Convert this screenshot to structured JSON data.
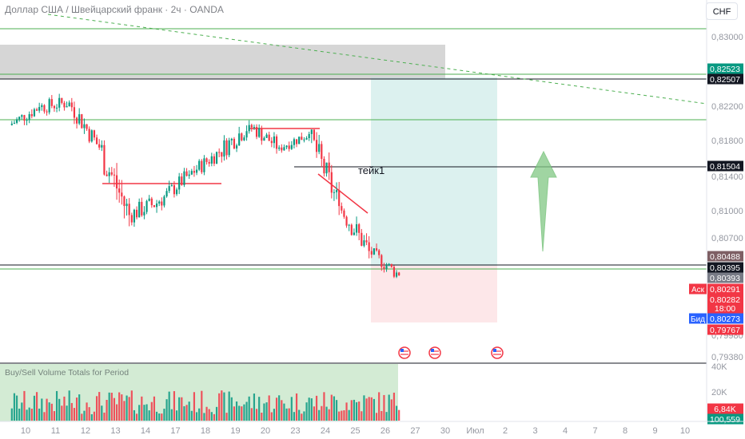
{
  "title": "Доллар США / Швейцарский франк · 2ч · OANDA",
  "currency_button": "CHF",
  "colors": {
    "up": "#089981",
    "down": "#f23645",
    "green_line": "#4caf50",
    "target_zone": "#b2dfdb",
    "stop_zone": "#fde1e3",
    "gray_zone": "#d6d6d6",
    "arrow": "#81c784"
  },
  "volume_panel_title": "Buy/Sell Volume Totals for Period",
  "annotation": "тейк1",
  "price_axis": {
    "ticks": [
      "0,83000",
      "0,82200",
      "0,81800",
      "0,81400",
      "0,81000",
      "0,80700",
      "0,79980",
      "0,79380"
    ],
    "tags": [
      {
        "label": "0,82523",
        "color": "#089981"
      },
      {
        "label": "0,82507",
        "color": "#131722"
      },
      {
        "label": "0,81504",
        "color": "#131722"
      },
      {
        "label": "0,80488",
        "color": "#7e5f64"
      },
      {
        "label": "0,80395",
        "color": "#131722"
      },
      {
        "label": "0,80393",
        "color": "#787b86"
      },
      {
        "label": "0,80291",
        "color": "#f23645",
        "side": "Аск"
      },
      {
        "label": "0,80282",
        "color": "#f23645"
      },
      {
        "label": "18:00",
        "color": "#f23645"
      },
      {
        "label": "0,80273",
        "color": "#2962ff",
        "side": "Бид"
      },
      {
        "label": "0,79767",
        "color": "#f23645"
      }
    ]
  },
  "volume_axis": {
    "ticks": [
      "40K",
      "20K"
    ],
    "tags": [
      {
        "label": "6,84K",
        "color": "#f23645"
      },
      {
        "label": "100,559",
        "color": "#089981"
      }
    ]
  },
  "time_axis": [
    "10",
    "11",
    "12",
    "13",
    "14",
    "17",
    "18",
    "19",
    "20",
    "23",
    "24",
    "25",
    "26",
    "27",
    "30",
    "Июл",
    "2",
    "3",
    "4",
    "7",
    "8",
    "9",
    "10"
  ],
  "chart_data": {
    "type": "candlestick",
    "timeframe": "2h",
    "ylim": [
      0.7938,
      0.8312
    ],
    "x_labels": [
      "10",
      "11",
      "12",
      "13",
      "14",
      "17",
      "18",
      "19",
      "20",
      "23",
      "24",
      "25",
      "26",
      "27",
      "30",
      "Июл",
      "2",
      "3",
      "4",
      "7",
      "8",
      "9",
      "10"
    ],
    "daily_ohlc": [
      {
        "day": "10",
        "open": 0.8195,
        "high": 0.823,
        "low": 0.8185,
        "close": 0.8215
      },
      {
        "day": "11",
        "open": 0.8215,
        "high": 0.824,
        "low": 0.8195,
        "close": 0.822
      },
      {
        "day": "12",
        "open": 0.822,
        "high": 0.8225,
        "low": 0.816,
        "close": 0.817
      },
      {
        "day": "13",
        "open": 0.817,
        "high": 0.8178,
        "low": 0.806,
        "close": 0.8095
      },
      {
        "day": "14",
        "open": 0.8095,
        "high": 0.814,
        "low": 0.808,
        "close": 0.811
      },
      {
        "day": "17",
        "open": 0.811,
        "high": 0.8148,
        "low": 0.8095,
        "close": 0.814
      },
      {
        "day": "18",
        "open": 0.814,
        "high": 0.8178,
        "low": 0.8128,
        "close": 0.8165
      },
      {
        "day": "19",
        "open": 0.8165,
        "high": 0.8215,
        "low": 0.815,
        "close": 0.8195
      },
      {
        "day": "20",
        "open": 0.8195,
        "high": 0.82,
        "low": 0.815,
        "close": 0.817
      },
      {
        "day": "23",
        "open": 0.817,
        "high": 0.8198,
        "low": 0.816,
        "close": 0.8185
      },
      {
        "day": "24",
        "open": 0.8185,
        "high": 0.819,
        "low": 0.8095,
        "close": 0.8105
      },
      {
        "day": "25",
        "open": 0.8105,
        "high": 0.811,
        "low": 0.8035,
        "close": 0.8055
      },
      {
        "day": "26",
        "open": 0.8055,
        "high": 0.807,
        "low": 0.8025,
        "close": 0.8028
      }
    ],
    "horizontal_levels": [
      0.8302,
      0.82523,
      0.82507,
      0.8208,
      0.81504,
      0.804,
      0.80395
    ],
    "zones": [
      {
        "name": "resistance",
        "low": 0.8252,
        "high": 0.829
      },
      {
        "name": "target",
        "low": 0.80395,
        "high": 0.8252
      },
      {
        "name": "stop",
        "low": 0.79767,
        "high": 0.80395
      }
    ],
    "trendline": {
      "from": {
        "day": "10",
        "price": 0.8312
      },
      "to": {
        "day": "10",
        "price": 0.822
      }
    },
    "arrow": "up",
    "volume": {
      "ylim": [
        0,
        45000
      ],
      "last_value": "6,84K"
    }
  }
}
